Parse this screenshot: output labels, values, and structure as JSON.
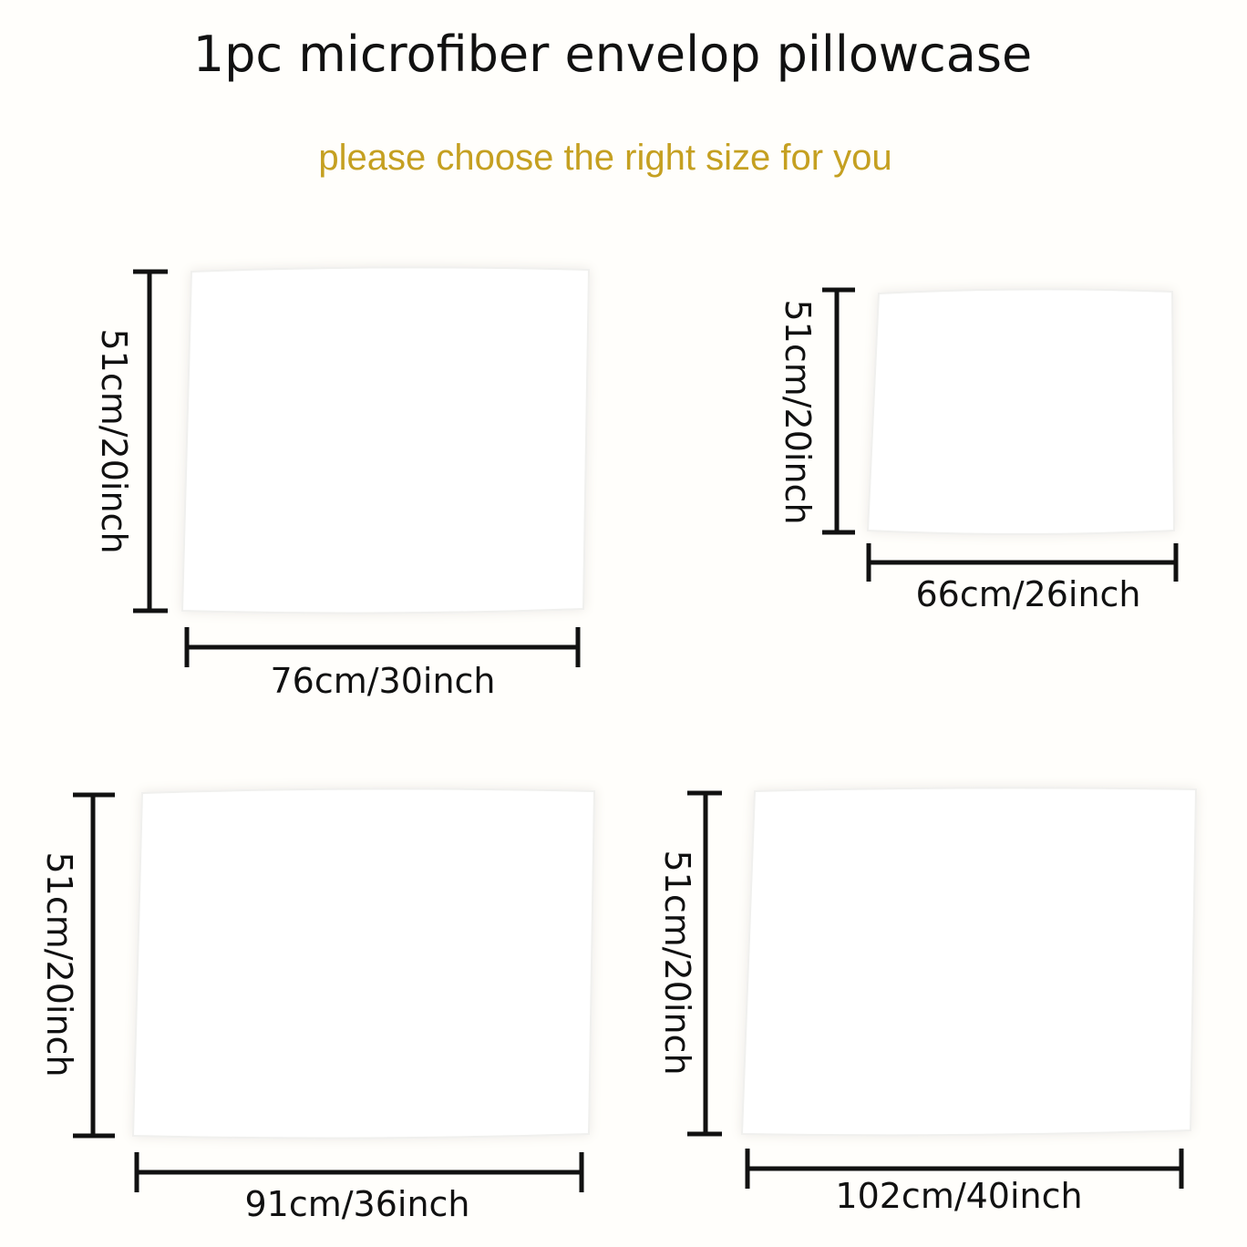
{
  "header": {
    "title": "1pc microfiber envelop pillowcase",
    "subtitle": "please choose the right size for you"
  },
  "pillows": [
    {
      "height_label": "51cm/20inch",
      "width_label": "76cm/30inch"
    },
    {
      "height_label": "51cm/20inch",
      "width_label": "66cm/26inch"
    },
    {
      "height_label": "51cm/20inch",
      "width_label": "91cm/36inch"
    },
    {
      "height_label": "51cm/20inch",
      "width_label": "102cm/40inch"
    }
  ]
}
